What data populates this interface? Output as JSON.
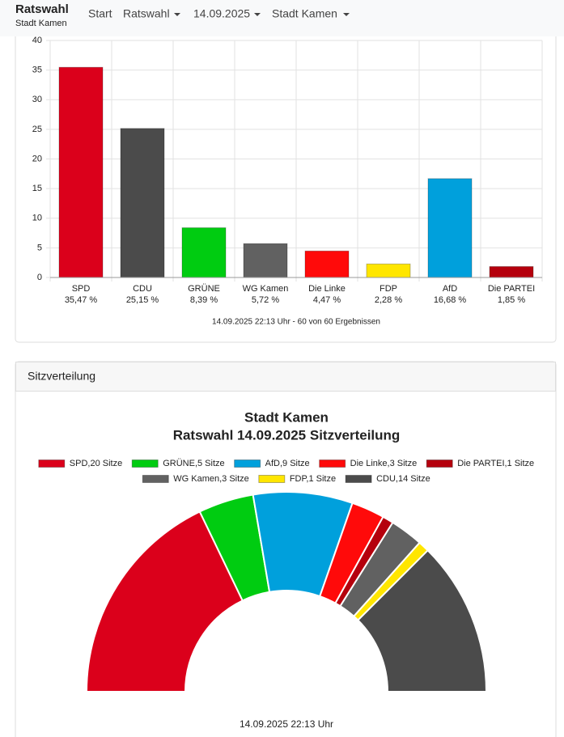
{
  "navbar": {
    "brand": "Ratswahl",
    "subtitle": "Stadt Kamen",
    "items": [
      "Start",
      "Ratswahl",
      "14.09.2025",
      "Stadt Kamen"
    ]
  },
  "panel_title": "Sitzverteilung",
  "chart_data": [
    {
      "type": "bar",
      "categories": [
        "SPD",
        "CDU",
        "GRÜNE",
        "WG Kamen",
        "Die Linke",
        "FDP",
        "AfD",
        "Die PARTEI"
      ],
      "values": [
        35.47,
        25.15,
        8.39,
        5.72,
        4.47,
        2.28,
        16.68,
        1.85
      ],
      "value_labels": [
        "35,47 %",
        "25,15 %",
        "8,39 %",
        "5,72 %",
        "4,47 %",
        "2,28 %",
        "16,68 %",
        "1,85 %"
      ],
      "colors": [
        "#db001b",
        "#4b4b4b",
        "#00cc11",
        "#616161",
        "#ff0a0a",
        "#ffe600",
        "#00a0dc",
        "#b5000d"
      ],
      "ylim": [
        0,
        40
      ],
      "yticks": [
        0,
        5,
        10,
        15,
        20,
        25,
        30,
        35,
        40
      ],
      "grid": true,
      "footnote": "14.09.2025 22:13 Uhr - 60 von 60 Ergebnissen"
    },
    {
      "type": "half-doughnut",
      "title": [
        "Stadt Kamen",
        "Ratswahl 14.09.2025 Sitzverteilung"
      ],
      "labels": [
        "SPD,20 Sitze",
        "GRÜNE,5 Sitze",
        "AfD,9 Sitze",
        "Die Linke,3 Sitze",
        "Die PARTEI,1 Sitze",
        "WG Kamen,3 Sitze",
        "FDP,1 Sitze",
        "CDU,14 Sitze"
      ],
      "values": [
        20,
        5,
        9,
        3,
        1,
        3,
        1,
        14
      ],
      "colors": [
        "#db001b",
        "#00cc11",
        "#00a0dc",
        "#ff0a0a",
        "#b5000d",
        "#616161",
        "#ffe600",
        "#4b4b4b"
      ],
      "footnote": "14.09.2025 22:13 Uhr"
    }
  ]
}
